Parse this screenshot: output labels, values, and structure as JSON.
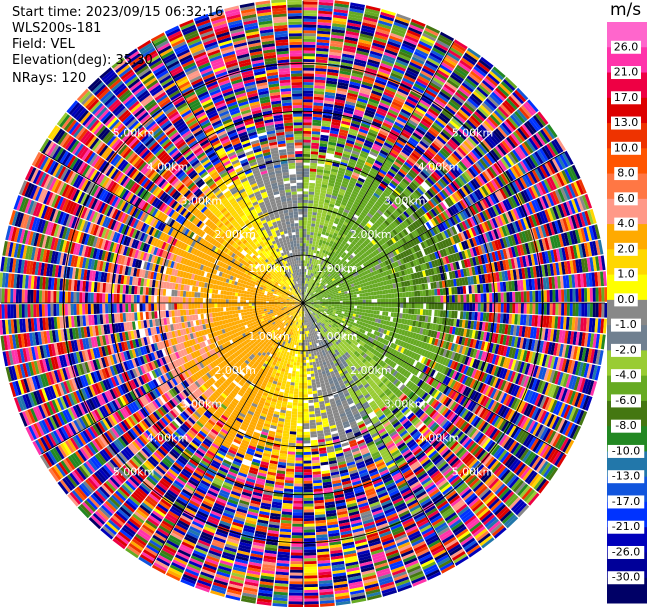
{
  "header": {
    "start_time": "Start time: 2023/09/15 06:32:16",
    "instrument": "WLS200s-181",
    "field": "Field: VEL",
    "elevation": "Elevation(deg): 35.30",
    "nrays": "NRays: 120"
  },
  "chart_data": {
    "type": "heatmap",
    "projection": "polar-ppi",
    "field": "VEL",
    "units": "m/s",
    "nrays": 120,
    "elevation_deg": 35.3,
    "max_range_km": 6.3,
    "range_rings_km": [
      1.0,
      2.0,
      3.0,
      4.0,
      5.0
    ],
    "ring_labels": [
      "1.00km",
      "2.00km",
      "3.00km",
      "4.00km",
      "5.00km"
    ],
    "spokes_deg": [
      0,
      30,
      60,
      90,
      120,
      150,
      180,
      210,
      240,
      270,
      300,
      330
    ],
    "colorbar": {
      "title": "m/s",
      "tick_labels": [
        "26.0",
        "21.0",
        "17.0",
        "13.0",
        "10.0",
        "8.0",
        "6.0",
        "4.0",
        "2.0",
        "1.0",
        "0.0",
        "-1.0",
        "-2.0",
        "-4.0",
        "-6.0",
        "-8.0",
        "-10.0",
        "-13.0",
        "-17.0",
        "-21.0",
        "-26.0",
        "-30.0"
      ],
      "colors": [
        "#ff66cc",
        "#ff33aa",
        "#ee0044",
        "#dd0000",
        "#ee3300",
        "#ff5500",
        "#ff7744",
        "#ff9988",
        "#ffaa00",
        "#ffd700",
        "#ffff00",
        "#888888",
        "#708090",
        "#99cc33",
        "#66aa22",
        "#447711",
        "#228822",
        "#2277aa",
        "#1155dd",
        "#0033ff",
        "#0000bb",
        "#000099",
        "#000066"
      ]
    }
  }
}
